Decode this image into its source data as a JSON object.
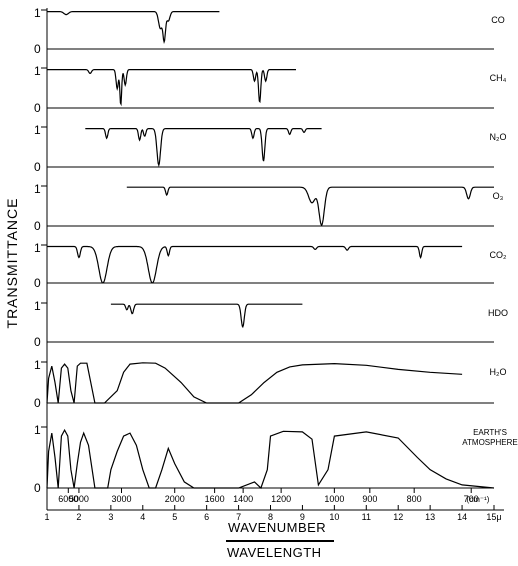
{
  "chart_data": {
    "type": "line",
    "ylabel": "TRANSMITTANCE",
    "xlabel_top": "WAVENUMBER",
    "xlabel_bottom": "WAVELENGTH",
    "wavelength_range": [
      1,
      15
    ],
    "ylim": [
      0,
      1
    ],
    "x_wavelength_ticks": [
      "1",
      "2",
      "3",
      "4",
      "5",
      "6",
      "7",
      "8",
      "9",
      "10",
      "11",
      "12",
      "13",
      "14",
      "15μ"
    ],
    "x_wavenumber_ticks": [
      {
        "label": "6000",
        "wl": 1.667
      },
      {
        "label": "5000",
        "wl": 2.0
      },
      {
        "label": "3000",
        "wl": 3.333
      },
      {
        "label": "2000",
        "wl": 5.0
      },
      {
        "label": "1600",
        "wl": 6.25
      },
      {
        "label": "1400",
        "wl": 7.143
      },
      {
        "label": "1200",
        "wl": 8.333
      },
      {
        "label": "1000",
        "wl": 10.0
      },
      {
        "label": "900",
        "wl": 11.111
      },
      {
        "label": "800",
        "wl": 12.5
      },
      {
        "label": "700",
        "wl": 14.286
      }
    ],
    "wavenumber_unit": "(cm⁻¹)",
    "panels": [
      {
        "name": "CO",
        "range": [
          1.0,
          6.4
        ],
        "baseline": 0.96,
        "bands": [
          {
            "c": 4.67,
            "d": 0.8,
            "w": 0.06
          },
          {
            "c": 4.55,
            "d": 0.45,
            "w": 0.08
          },
          {
            "c": 4.8,
            "d": 0.25,
            "w": 0.07
          },
          {
            "c": 1.6,
            "d": 0.08,
            "w": 0.1
          }
        ]
      },
      {
        "name": "CH₄",
        "range": [
          1.0,
          8.8
        ],
        "baseline": 0.96,
        "bands": [
          {
            "c": 3.31,
            "d": 0.92,
            "w": 0.04
          },
          {
            "c": 3.2,
            "d": 0.5,
            "w": 0.05
          },
          {
            "c": 3.45,
            "d": 0.4,
            "w": 0.05
          },
          {
            "c": 7.66,
            "d": 0.85,
            "w": 0.05
          },
          {
            "c": 7.5,
            "d": 0.3,
            "w": 0.05
          },
          {
            "c": 7.85,
            "d": 0.3,
            "w": 0.05
          },
          {
            "c": 2.35,
            "d": 0.1,
            "w": 0.06
          }
        ]
      },
      {
        "name": "N₂O",
        "range": [
          2.2,
          9.6
        ],
        "baseline": 0.96,
        "bands": [
          {
            "c": 4.5,
            "d": 0.95,
            "w": 0.08
          },
          {
            "c": 7.78,
            "d": 0.85,
            "w": 0.06
          },
          {
            "c": 2.87,
            "d": 0.25,
            "w": 0.05
          },
          {
            "c": 3.9,
            "d": 0.3,
            "w": 0.05
          },
          {
            "c": 4.06,
            "d": 0.2,
            "w": 0.05
          },
          {
            "c": 8.6,
            "d": 0.15,
            "w": 0.05
          },
          {
            "c": 9.05,
            "d": 0.1,
            "w": 0.05
          },
          {
            "c": 7.45,
            "d": 0.25,
            "w": 0.05
          }
        ]
      },
      {
        "name": "O₃",
        "range": [
          3.5,
          15.0
        ],
        "baseline": 0.97,
        "bands": [
          {
            "c": 9.6,
            "d": 0.98,
            "w": 0.12
          },
          {
            "c": 9.3,
            "d": 0.4,
            "w": 0.15
          },
          {
            "c": 14.2,
            "d": 0.3,
            "w": 0.08
          },
          {
            "c": 4.75,
            "d": 0.2,
            "w": 0.05
          }
        ]
      },
      {
        "name": "CO₂",
        "range": [
          1.0,
          14.0
        ],
        "baseline": 0.96,
        "bands": [
          {
            "c": 2.75,
            "d": 1.0,
            "w": 0.18
          },
          {
            "c": 4.3,
            "d": 1.0,
            "w": 0.18
          },
          {
            "c": 2.0,
            "d": 0.3,
            "w": 0.06
          },
          {
            "c": 4.8,
            "d": 0.25,
            "w": 0.05
          },
          {
            "c": 12.7,
            "d": 0.3,
            "w": 0.05
          },
          {
            "c": 9.4,
            "d": 0.08,
            "w": 0.06
          },
          {
            "c": 10.4,
            "d": 0.1,
            "w": 0.06
          }
        ]
      },
      {
        "name": "HDO",
        "range": [
          3.0,
          9.0
        ],
        "baseline": 0.97,
        "bands": [
          {
            "c": 7.13,
            "d": 0.6,
            "w": 0.07
          },
          {
            "c": 3.67,
            "d": 0.25,
            "w": 0.06
          },
          {
            "c": 3.5,
            "d": 0.15,
            "w": 0.05
          }
        ]
      },
      {
        "name": "H₂O",
        "range": [
          1.0,
          14.0
        ],
        "points": [
          [
            1.0,
            0.0
          ],
          [
            1.05,
            0.6
          ],
          [
            1.15,
            0.9
          ],
          [
            1.25,
            0.5
          ],
          [
            1.35,
            0.0
          ],
          [
            1.45,
            0.85
          ],
          [
            1.55,
            0.95
          ],
          [
            1.65,
            0.85
          ],
          [
            1.75,
            0.3
          ],
          [
            1.85,
            0.0
          ],
          [
            1.95,
            0.9
          ],
          [
            2.05,
            0.97
          ],
          [
            2.25,
            0.97
          ],
          [
            2.5,
            0.0
          ],
          [
            2.8,
            0.0
          ],
          [
            3.2,
            0.3
          ],
          [
            3.4,
            0.75
          ],
          [
            3.6,
            0.95
          ],
          [
            4.0,
            0.98
          ],
          [
            4.4,
            0.97
          ],
          [
            4.7,
            0.85
          ],
          [
            5.2,
            0.5
          ],
          [
            5.6,
            0.15
          ],
          [
            6.0,
            0.0
          ],
          [
            7.0,
            0.0
          ],
          [
            7.4,
            0.2
          ],
          [
            7.8,
            0.5
          ],
          [
            8.2,
            0.75
          ],
          [
            8.6,
            0.88
          ],
          [
            9.0,
            0.93
          ],
          [
            10.0,
            0.96
          ],
          [
            11.0,
            0.92
          ],
          [
            12.0,
            0.82
          ],
          [
            13.0,
            0.75
          ],
          [
            14.0,
            0.7
          ]
        ]
      },
      {
        "name": "EARTH'S ATMOSPHERE",
        "range": [
          1.0,
          15.0
        ],
        "points": [
          [
            1.0,
            0.0
          ],
          [
            1.05,
            0.6
          ],
          [
            1.15,
            0.9
          ],
          [
            1.25,
            0.5
          ],
          [
            1.35,
            0.0
          ],
          [
            1.45,
            0.85
          ],
          [
            1.55,
            0.95
          ],
          [
            1.65,
            0.85
          ],
          [
            1.75,
            0.3
          ],
          [
            1.85,
            0.0
          ],
          [
            1.95,
            0.4
          ],
          [
            2.05,
            0.75
          ],
          [
            2.15,
            0.9
          ],
          [
            2.3,
            0.7
          ],
          [
            2.5,
            0.0
          ],
          [
            2.9,
            0.0
          ],
          [
            3.0,
            0.3
          ],
          [
            3.2,
            0.6
          ],
          [
            3.4,
            0.85
          ],
          [
            3.6,
            0.9
          ],
          [
            3.8,
            0.7
          ],
          [
            4.0,
            0.3
          ],
          [
            4.2,
            0.0
          ],
          [
            4.4,
            0.0
          ],
          [
            4.6,
            0.3
          ],
          [
            4.8,
            0.65
          ],
          [
            5.0,
            0.4
          ],
          [
            5.3,
            0.1
          ],
          [
            5.6,
            0.0
          ],
          [
            7.0,
            0.0
          ],
          [
            7.5,
            0.1
          ],
          [
            7.7,
            0.0
          ],
          [
            7.9,
            0.3
          ],
          [
            8.0,
            0.85
          ],
          [
            8.4,
            0.93
          ],
          [
            9.0,
            0.92
          ],
          [
            9.3,
            0.8
          ],
          [
            9.5,
            0.05
          ],
          [
            9.8,
            0.3
          ],
          [
            10.0,
            0.85
          ],
          [
            11.0,
            0.92
          ],
          [
            12.0,
            0.82
          ],
          [
            12.6,
            0.5
          ],
          [
            13.0,
            0.3
          ],
          [
            13.5,
            0.15
          ],
          [
            14.0,
            0.05
          ],
          [
            15.0,
            0.0
          ]
        ]
      }
    ]
  }
}
